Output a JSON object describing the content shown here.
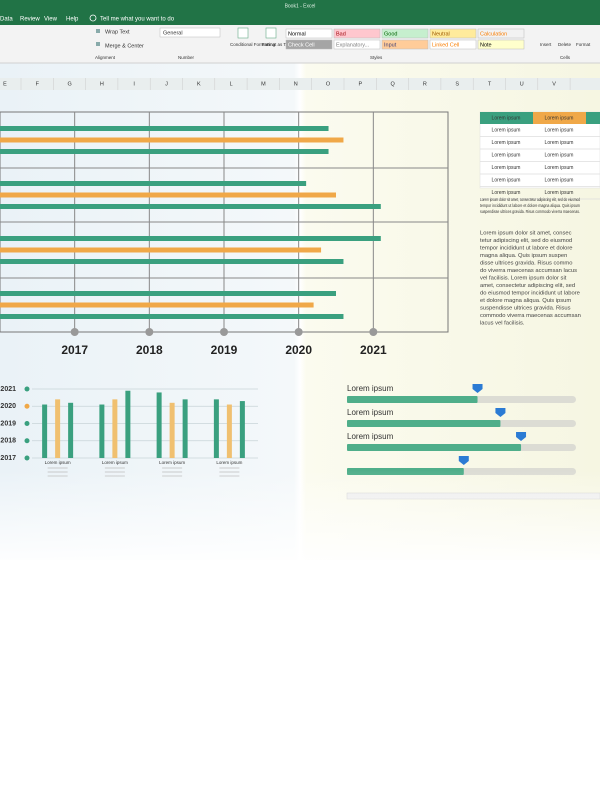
{
  "window_title": "Book1 - Excel",
  "tabs": [
    "Data",
    "Review",
    "View",
    "Help"
  ],
  "tell_me": "Tell me what you want to do",
  "ribbon": {
    "wrap_text": "Wrap Text",
    "merge_center": "Merge & Center",
    "number_format": "General",
    "conditional_formatting": "Conditional Formatting",
    "format_as_table": "Format as Table",
    "styles": [
      {
        "label": "Normal",
        "fill": "#ffffff",
        "color": "#000000"
      },
      {
        "label": "Bad",
        "fill": "#ffc7ce",
        "color": "#9c0006"
      },
      {
        "label": "Good",
        "fill": "#c6efce",
        "color": "#006100"
      },
      {
        "label": "Neutral",
        "fill": "#ffeb9c",
        "color": "#9c5700"
      },
      {
        "label": "Calculation",
        "fill": "#f2f2f2",
        "color": "#fa7d00"
      },
      {
        "label": "Check Cell",
        "fill": "#a5a5a5",
        "color": "#ffffff"
      },
      {
        "label": "Explanatory...",
        "fill": "#ffffff",
        "color": "#7f7f7f"
      },
      {
        "label": "Input",
        "fill": "#ffcc99",
        "color": "#3f3f76"
      },
      {
        "label": "Linked Cell",
        "fill": "#ffffff",
        "color": "#fa7d00"
      },
      {
        "label": "Note",
        "fill": "#ffffcc",
        "color": "#000000"
      }
    ],
    "cells": [
      "Insert",
      "Delete",
      "Format"
    ],
    "groups": [
      "Alignment",
      "Number",
      "Styles",
      "Cells"
    ]
  },
  "columns": [
    "E",
    "F",
    "G",
    "H",
    "I",
    "J",
    "K",
    "L",
    "M",
    "N",
    "O",
    "P",
    "Q",
    "R",
    "S",
    "T",
    "U",
    "V"
  ],
  "chart_data": [
    {
      "type": "hbar",
      "categories": [
        null,
        null,
        null,
        null
      ],
      "series": [
        {
          "color": "#3aa07f",
          "values": [
            2020.4,
            2020.1,
            2021.1,
            2020.5
          ]
        },
        {
          "color": "#f0a848",
          "values": [
            2020.6,
            2020.5,
            2020.3,
            2020.2
          ]
        },
        {
          "color": "#3aa07f",
          "values": [
            2020.4,
            2021.1,
            2020.6,
            2020.6
          ]
        }
      ],
      "xlim": [
        2016,
        2022
      ],
      "xticks": [
        2017,
        2018,
        2019,
        2020,
        2021
      ],
      "grid": true
    },
    {
      "type": "bar",
      "categories": [
        "Lorem ipsum",
        "Lorem ipsum",
        "Lorem ipsum",
        "Lorem ipsum"
      ],
      "series": [
        {
          "color": "#3aa07f",
          "values": [
            2020.1,
            2020.1,
            2020.8,
            2020.4
          ]
        },
        {
          "color": "#f0c070",
          "values": [
            2020.4,
            2020.4,
            2020.2,
            2020.1
          ]
        },
        {
          "color": "#3aa07f",
          "values": [
            2020.2,
            2020.9,
            2020.4,
            2020.3
          ]
        }
      ],
      "ylim": [
        2017,
        2021
      ],
      "yticks": [
        2017,
        2018,
        2019,
        2020,
        2021
      ],
      "grid": true
    },
    {
      "type": "progress",
      "categories": [
        "Lorem ipsum",
        "Lorem ipsum",
        "Lorem ipsum",
        null
      ],
      "values": [
        57,
        67,
        76,
        51
      ],
      "color": "#4fae8a",
      "xlim": [
        0,
        100
      ]
    }
  ],
  "table": {
    "header": [
      "Lorem ipsum",
      "Lorem ipsum"
    ],
    "rows": [
      [
        "Lorem ipsum",
        "Lorem ipsum"
      ],
      [
        "Lorem ipsum",
        "Lorem ipsum"
      ],
      [
        "Lorem ipsum",
        "Lorem ipsum"
      ],
      [
        "Lorem ipsum",
        "Lorem ipsum"
      ],
      [
        "Lorem ipsum",
        "Lorem ipsum"
      ],
      [
        "Lorem ipsum",
        "Lorem ipsum"
      ]
    ]
  },
  "note_lines": [
    "Lorem ipsum dolor sit amet, consectetur adipiscing elit, sed do eiusmod",
    "tempor incididunt ut labore et dolore magna aliqua. Quis ipsum",
    "suspendisse ultrices gravida. Risus commodo viverra maecenas."
  ],
  "paragraph_lines": [
    "Lorem ipsum dolor sit amet, consec",
    "tetur adipiscing elit, sed do eiusmod",
    "tempor incididunt ut labore et dolore",
    "magna aliqua. Quis ipsum suspen",
    "disse ultrices gravida. Risus commo",
    "do viverra maecenas accumsan lacus",
    "vel facilisis. Lorem ipsum dolor sit",
    "amet, consectetur adipiscing elit, sed",
    "do eiusmod tempor incididunt ut labore",
    "et dolore magna aliqua. Quis ipsum",
    "suspendisse ultrices gravida. Risus",
    "commodo viverra maecenas accumsan",
    "lacus vel facilisis."
  ]
}
